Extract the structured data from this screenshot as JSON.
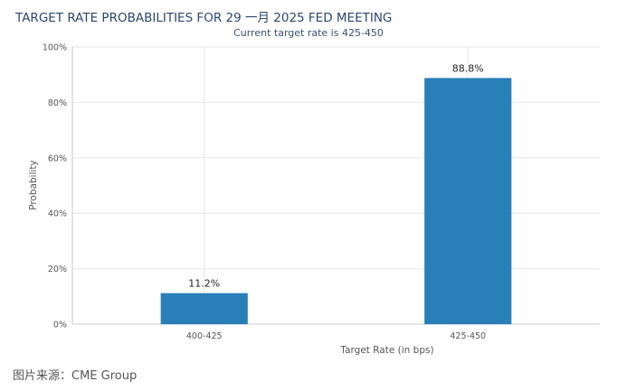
{
  "chart_data": {
    "type": "bar",
    "title": "TARGET RATE PROBABILITIES FOR 29 一月 2025 FED MEETING",
    "subtitle": "Current target rate is 425-450",
    "xlabel": "Target Rate (in bps)",
    "ylabel": "Probability",
    "categories": [
      "400-425",
      "425-450"
    ],
    "values": [
      11.2,
      88.8
    ],
    "data_labels": [
      "11.2%",
      "88.8%"
    ],
    "ylim": [
      0,
      100
    ],
    "yticks": [
      "0%",
      "20%",
      "40%",
      "60%",
      "80%",
      "100%"
    ],
    "ytick_values": [
      0,
      20,
      40,
      60,
      80,
      100
    ],
    "grid": true,
    "bar_color": "#2980b9"
  },
  "caption": "图片来源：CME Group"
}
